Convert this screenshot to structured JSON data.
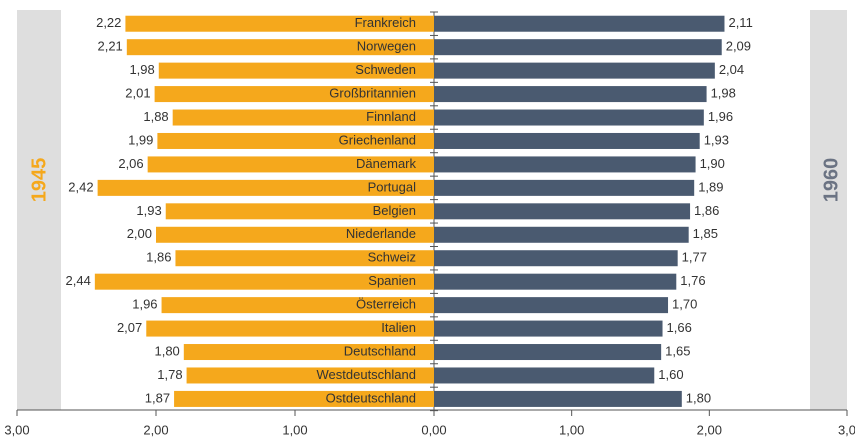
{
  "chart_data": {
    "type": "butterfly",
    "categories": [
      "Frankreich",
      "Norwegen",
      "Schweden",
      "Großbritannien",
      "Finnland",
      "Griechenland",
      "Dänemark",
      "Portugal",
      "Belgien",
      "Niederlande",
      "Schweiz",
      "Spanien",
      "Österreich",
      "Italien",
      "Deutschland",
      "Westdeutschland",
      "Ostdeutschland"
    ],
    "series": [
      {
        "name": "1945",
        "color": "#f5a81c",
        "side": "left",
        "values": [
          2.22,
          2.21,
          1.98,
          2.01,
          1.88,
          1.99,
          2.06,
          2.42,
          1.93,
          2.0,
          1.86,
          2.44,
          1.96,
          2.07,
          1.8,
          1.78,
          1.87
        ],
        "value_labels": [
          "2,22",
          "2,21",
          "1,98",
          "2,01",
          "1,88",
          "1,99",
          "2,06",
          "2,42",
          "1,93",
          "2,00",
          "1,86",
          "2,44",
          "1,96",
          "2,07",
          "1,80",
          "1,78",
          "1,87"
        ]
      },
      {
        "name": "1960",
        "color": "#4a5a70",
        "side": "right",
        "values": [
          2.11,
          2.09,
          2.04,
          1.98,
          1.96,
          1.93,
          1.9,
          1.89,
          1.86,
          1.85,
          1.77,
          1.76,
          1.7,
          1.66,
          1.65,
          1.6,
          1.8
        ],
        "value_labels": [
          "2,11",
          "2,09",
          "2,04",
          "1,98",
          "1,96",
          "1,93",
          "1,90",
          "1,89",
          "1,86",
          "1,85",
          "1,77",
          "1,76",
          "1,70",
          "1,66",
          "1,65",
          "1,60",
          "1,80"
        ]
      }
    ],
    "xlim_left": [
      3,
      0
    ],
    "xticks_left": [
      {
        "value": 3,
        "label": "3,00"
      },
      {
        "value": 2,
        "label": "2,00"
      },
      {
        "value": 1,
        "label": "1,00"
      },
      {
        "value": 0,
        "label": "0,00"
      }
    ],
    "xlim_right": [
      0,
      3
    ],
    "xticks_right": [
      {
        "value": 1,
        "label": "1,00"
      },
      {
        "value": 2,
        "label": "2,00"
      },
      {
        "value": 3,
        "label": "3,0"
      }
    ]
  }
}
